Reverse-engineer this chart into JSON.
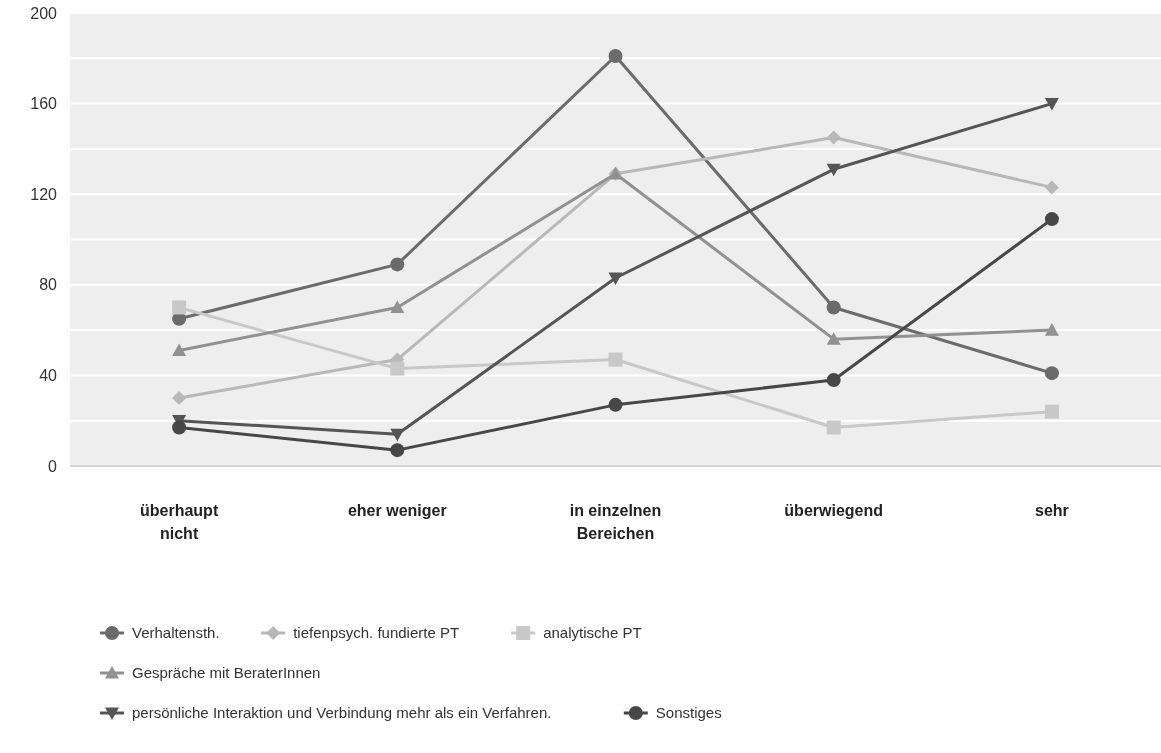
{
  "chart_data": {
    "type": "line",
    "categories": [
      "überhaupt nicht",
      "eher weniger",
      "in einzelnen Bereichen",
      "überwiegend",
      "sehr"
    ],
    "ylim": [
      0,
      200
    ],
    "yticks": [
      0,
      {
        "value": 20,
        "label": null
      },
      40,
      {
        "value": 60,
        "label": null
      },
      80,
      {
        "value": 100,
        "label": null
      },
      120,
      {
        "value": 140,
        "label": null
      },
      160,
      {
        "value": 180,
        "label": null
      },
      200
    ],
    "grid": "y",
    "legend": "bottom",
    "line_style": "solid",
    "series": [
      {
        "name": "Verhaltensth.",
        "color": "#6b6b6b",
        "marker": "circle",
        "values": [
          65,
          89,
          181,
          70,
          41
        ]
      },
      {
        "name": "tiefenpsych. fundierte PT",
        "color": "#b8b8b8",
        "marker": "diamond",
        "values": [
          30,
          47,
          129,
          145,
          123
        ]
      },
      {
        "name": "analytische PT",
        "color": "#c8c8c8",
        "marker": "square",
        "values": [
          70,
          43,
          47,
          17,
          24
        ]
      },
      {
        "name": "Gespräche mit BeraterInnen",
        "color": "#919191",
        "marker": "triangle",
        "values": [
          51,
          70,
          129,
          56,
          60
        ]
      },
      {
        "name": "persönliche Interaktion und Verbindung mehr als ein Verfahren.",
        "color": "#555555",
        "marker": "triangle-down",
        "values": [
          20,
          14,
          83,
          131,
          160
        ]
      },
      {
        "name": "Sonstiges",
        "color": "#474747",
        "marker": "circle",
        "values": [
          17,
          7,
          27,
          38,
          109
        ]
      }
    ]
  }
}
